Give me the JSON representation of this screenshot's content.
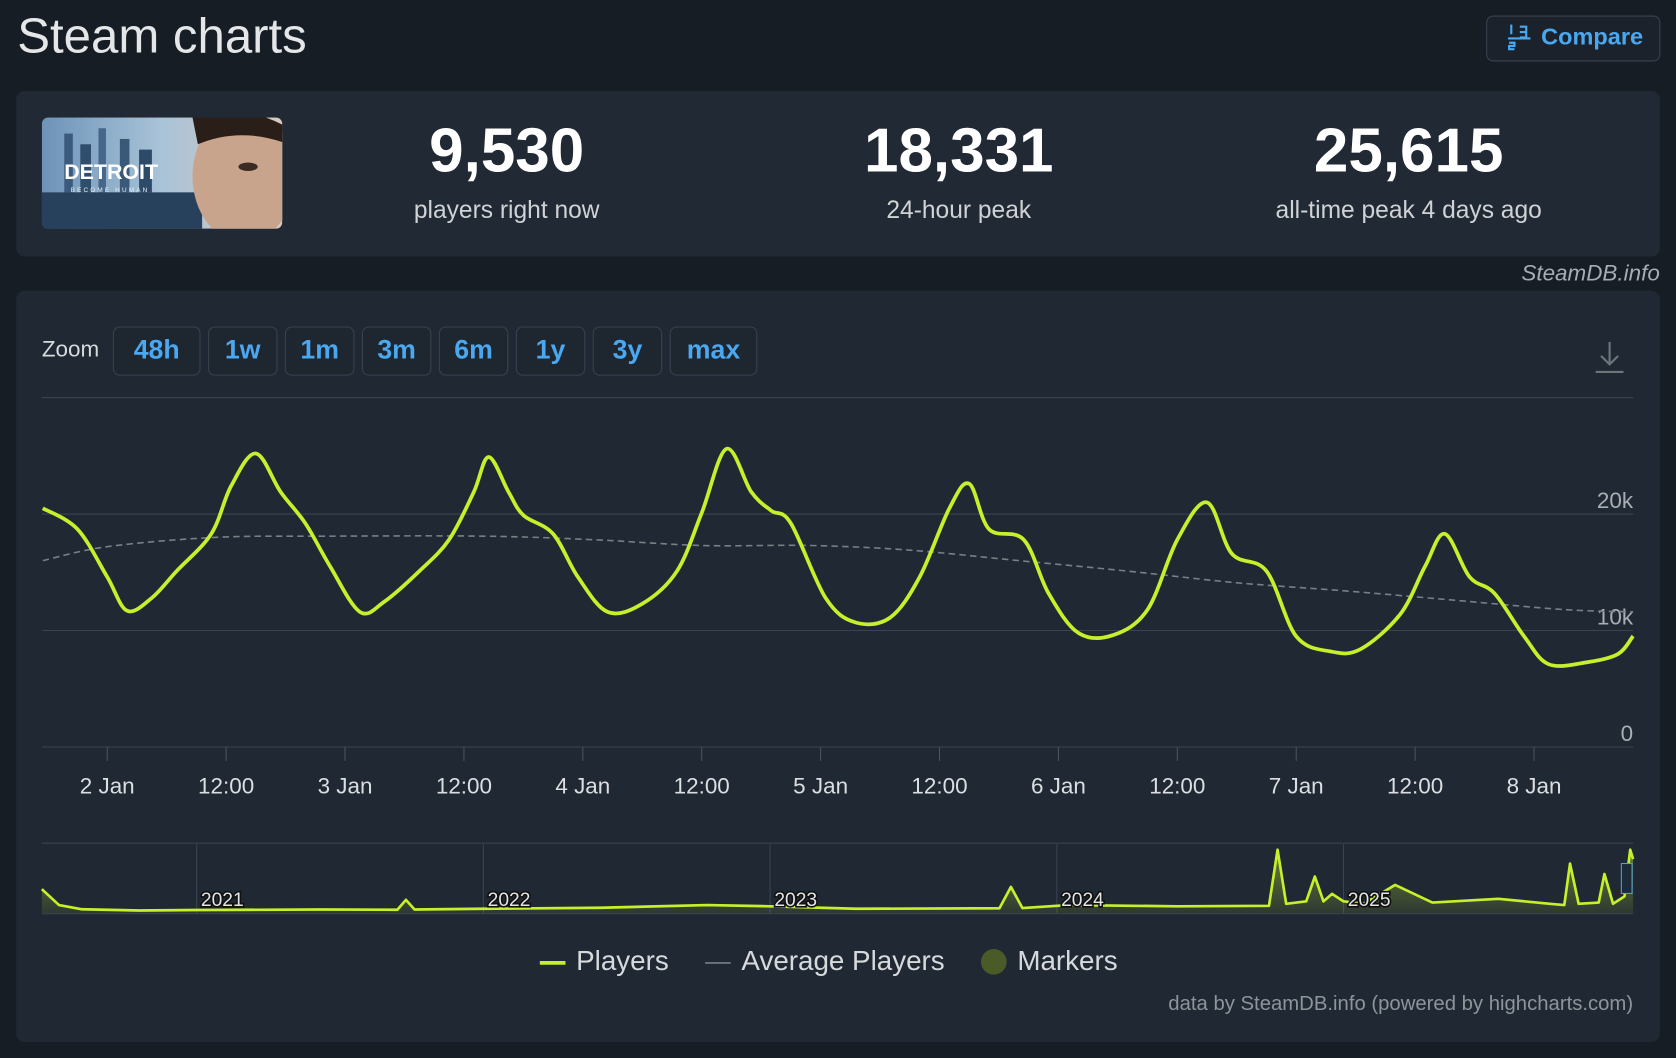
{
  "header": {
    "title": "Steam charts",
    "compare_button": "Compare"
  },
  "thumbnail": {
    "title": "DETROIT",
    "subtitle": "BECOME HUMAN"
  },
  "stats": [
    {
      "value": "9,530",
      "label": "players right now"
    },
    {
      "value": "18,331",
      "label": "24-hour peak"
    },
    {
      "value": "25,615",
      "label": "all-time peak 4 days ago"
    }
  ],
  "watermark": "SteamDB.info",
  "zoom": {
    "label": "Zoom",
    "options": [
      "48h",
      "1w",
      "1m",
      "3m",
      "6m",
      "1y",
      "3y",
      "max"
    ]
  },
  "chart_data": [
    {
      "type": "line",
      "grid": true,
      "legend": "bottom",
      "xlim": [
        17.4,
        178
      ],
      "ylim": [
        0,
        30000
      ],
      "xticks": [
        {
          "value": 24,
          "label": "2 Jan"
        },
        {
          "value": 36,
          "label": "12:00"
        },
        {
          "value": 48,
          "label": "3 Jan"
        },
        {
          "value": 60,
          "label": "12:00"
        },
        {
          "value": 72,
          "label": "4 Jan"
        },
        {
          "value": 84,
          "label": "12:00"
        },
        {
          "value": 96,
          "label": "5 Jan"
        },
        {
          "value": 108,
          "label": "12:00"
        },
        {
          "value": 120,
          "label": "6 Jan"
        },
        {
          "value": 132,
          "label": "12:00"
        },
        {
          "value": 144,
          "label": "7 Jan"
        },
        {
          "value": 156,
          "label": "12:00"
        },
        {
          "value": 168,
          "label": "8 Jan"
        }
      ],
      "yticks": [
        0,
        {
          "value": 10000,
          "label": "10k"
        },
        {
          "value": 20000,
          "label": "20k"
        }
      ],
      "series": [
        {
          "name": "Players",
          "type": "line",
          "color": "#c4f02c",
          "x": [
            17.5,
            21,
            24,
            26,
            28.5,
            31,
            34.5,
            36.5,
            39,
            41.5,
            44,
            46.5,
            49.5,
            52,
            55.5,
            58.5,
            61,
            62.5,
            64.5,
            66,
            69,
            71.5,
            74.5,
            78,
            81.5,
            84,
            86.5,
            89,
            91,
            93,
            96.5,
            99.5,
            103,
            106,
            109,
            111,
            113,
            116.5,
            119,
            122,
            125.5,
            129,
            132,
            135,
            137.5,
            141,
            144,
            147.5,
            150.5,
            154.5,
            157,
            159,
            161.5,
            164,
            167,
            169.5,
            173.5,
            176.5,
            178
          ],
          "values": [
            20500,
            18700,
            14600,
            11700,
            12800,
            15100,
            18300,
            22400,
            25200,
            21900,
            19200,
            15500,
            11600,
            12500,
            15100,
            17800,
            21900,
            24900,
            21900,
            19900,
            18300,
            14600,
            11600,
            12300,
            15100,
            20100,
            25600,
            21900,
            20300,
            19200,
            12800,
            10700,
            11100,
            14600,
            20500,
            22600,
            18700,
            17800,
            13200,
            9800,
            9600,
            11800,
            17800,
            21000,
            16600,
            15100,
            9500,
            8200,
            8400,
            11400,
            15500,
            18300,
            14600,
            13200,
            9500,
            7100,
            7300,
            8000,
            9530
          ]
        },
        {
          "name": "Average Players",
          "type": "line",
          "dashed": true,
          "color": "#7a7f86",
          "x": [
            17.5,
            24,
            35,
            46,
            62,
            73,
            84,
            95,
            105,
            116,
            127,
            138,
            149,
            160,
            171,
            178
          ],
          "values": [
            16000,
            17200,
            18000,
            18100,
            18100,
            17800,
            17300,
            17300,
            16900,
            16000,
            15100,
            14100,
            13400,
            12600,
            11800,
            11600
          ]
        },
        {
          "name": "Markers",
          "type": "scatter",
          "color": "#4b5b28",
          "x": [],
          "values": []
        }
      ]
    },
    {
      "type": "area",
      "color": "#c4f02c",
      "xlim": [
        2020.46,
        2026.01
      ],
      "ylim": [
        0,
        28000
      ],
      "xticks": [
        2021,
        2022,
        2023,
        2024,
        2025
      ],
      "x": [
        2020.46,
        2020.52,
        2020.6,
        2020.8,
        2021,
        2021.43,
        2021.7,
        2021.73,
        2021.76,
        2022,
        2022.41,
        2022.78,
        2023,
        2023.3,
        2023.8,
        2023.84,
        2023.88,
        2024.04,
        2024.42,
        2024.74,
        2024.77,
        2024.8,
        2024.87,
        2024.9,
        2024.93,
        2024.96,
        2025,
        2025.07,
        2025.18,
        2025.31,
        2025.54,
        2025.72,
        2025.77,
        2025.79,
        2025.82,
        2025.89,
        2025.91,
        2025.94,
        2025.98,
        2026.0,
        2026.01
      ],
      "values": [
        9900,
        3500,
        1800,
        1300,
        1500,
        1700,
        1600,
        5600,
        1700,
        2000,
        2400,
        3500,
        3000,
        2000,
        2200,
        10800,
        2300,
        3500,
        3000,
        3200,
        25800,
        4000,
        5000,
        15000,
        5000,
        8000,
        5000,
        4000,
        11600,
        4500,
        6000,
        4000,
        3500,
        20200,
        4000,
        4500,
        16000,
        4000,
        7000,
        25800,
        22000
      ]
    }
  ],
  "credits": "data by SteamDB.info (powered by highcharts.com)"
}
